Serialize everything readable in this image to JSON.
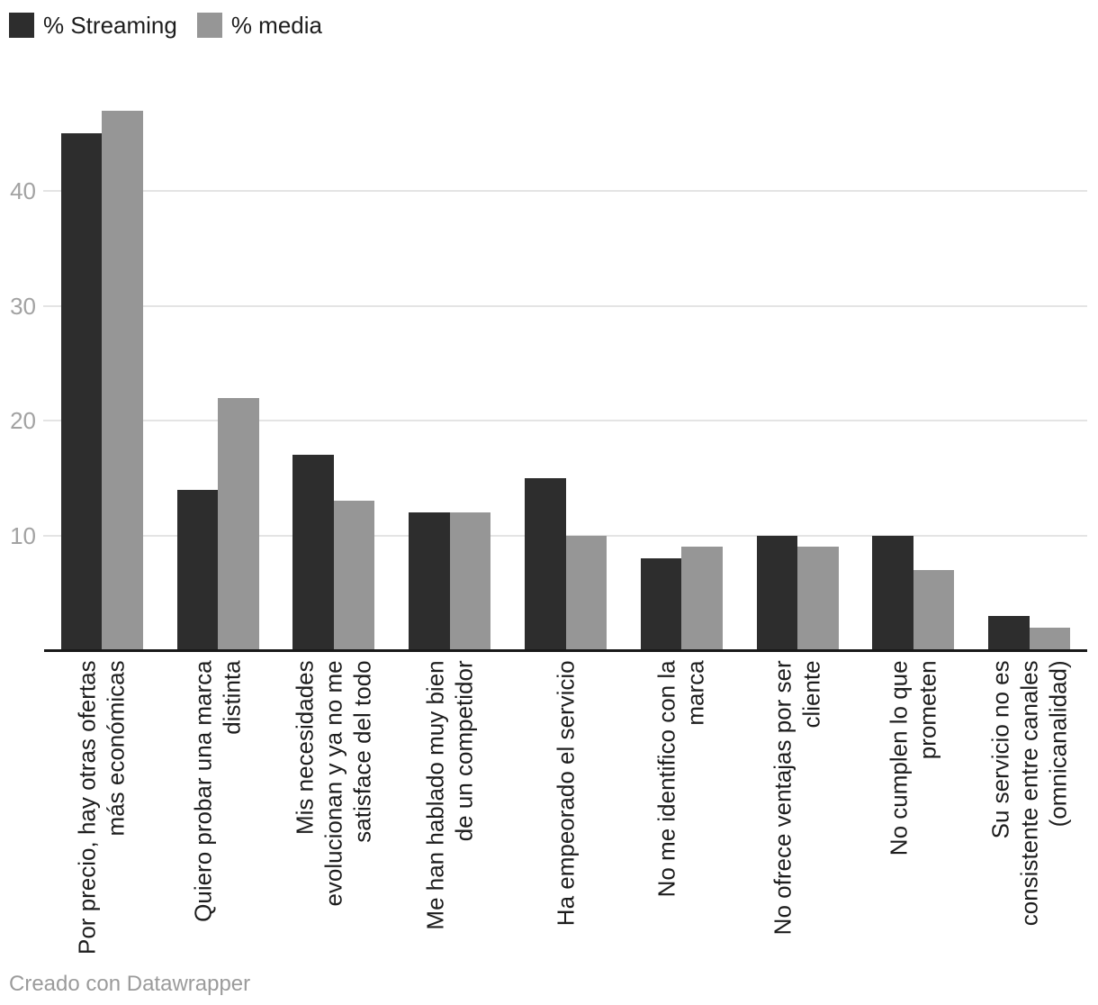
{
  "chart_data": {
    "type": "bar",
    "title": "",
    "categories": [
      "Por precio, hay otras ofertas\nmás económicas",
      "Quiero probar una marca\ndistinta",
      "Mis necesidades\nevolucionan y ya no me\nsatisface del todo",
      "Me han hablado muy bien\nde un competidor",
      "Ha empeorado el servicio",
      "No me identifico con la\nmarca",
      "No ofrece ventajas por ser\ncliente",
      "No cumplen lo que\nprometen",
      "Su servicio no es\nconsistente entre canales\n(omnicanalidad)"
    ],
    "series": [
      {
        "name": "% Streaming",
        "color": "#2d2d2d",
        "values": [
          45,
          14,
          17,
          12,
          15,
          8,
          10,
          10,
          3
        ]
      },
      {
        "name": "% media",
        "color": "#969696",
        "values": [
          47,
          22,
          13,
          12,
          10,
          9,
          9,
          7,
          2
        ]
      }
    ],
    "yticks": [
      10,
      20,
      30,
      40
    ],
    "ylim": [
      0,
      50
    ],
    "xlabel": "",
    "ylabel": "",
    "grid": "horizontal",
    "legend_position": "top-left"
  },
  "colors": {
    "bar_streaming": "#2d2d2d",
    "bar_media": "#969696",
    "gridline": "#e4e4e4",
    "axis_baseline": "#191919",
    "tick_label": "#a2a2a2",
    "category_label": "#1d1d1d",
    "footer_text": "#9b9b9b"
  },
  "footer": {
    "attribution": "Creado con Datawrapper"
  }
}
